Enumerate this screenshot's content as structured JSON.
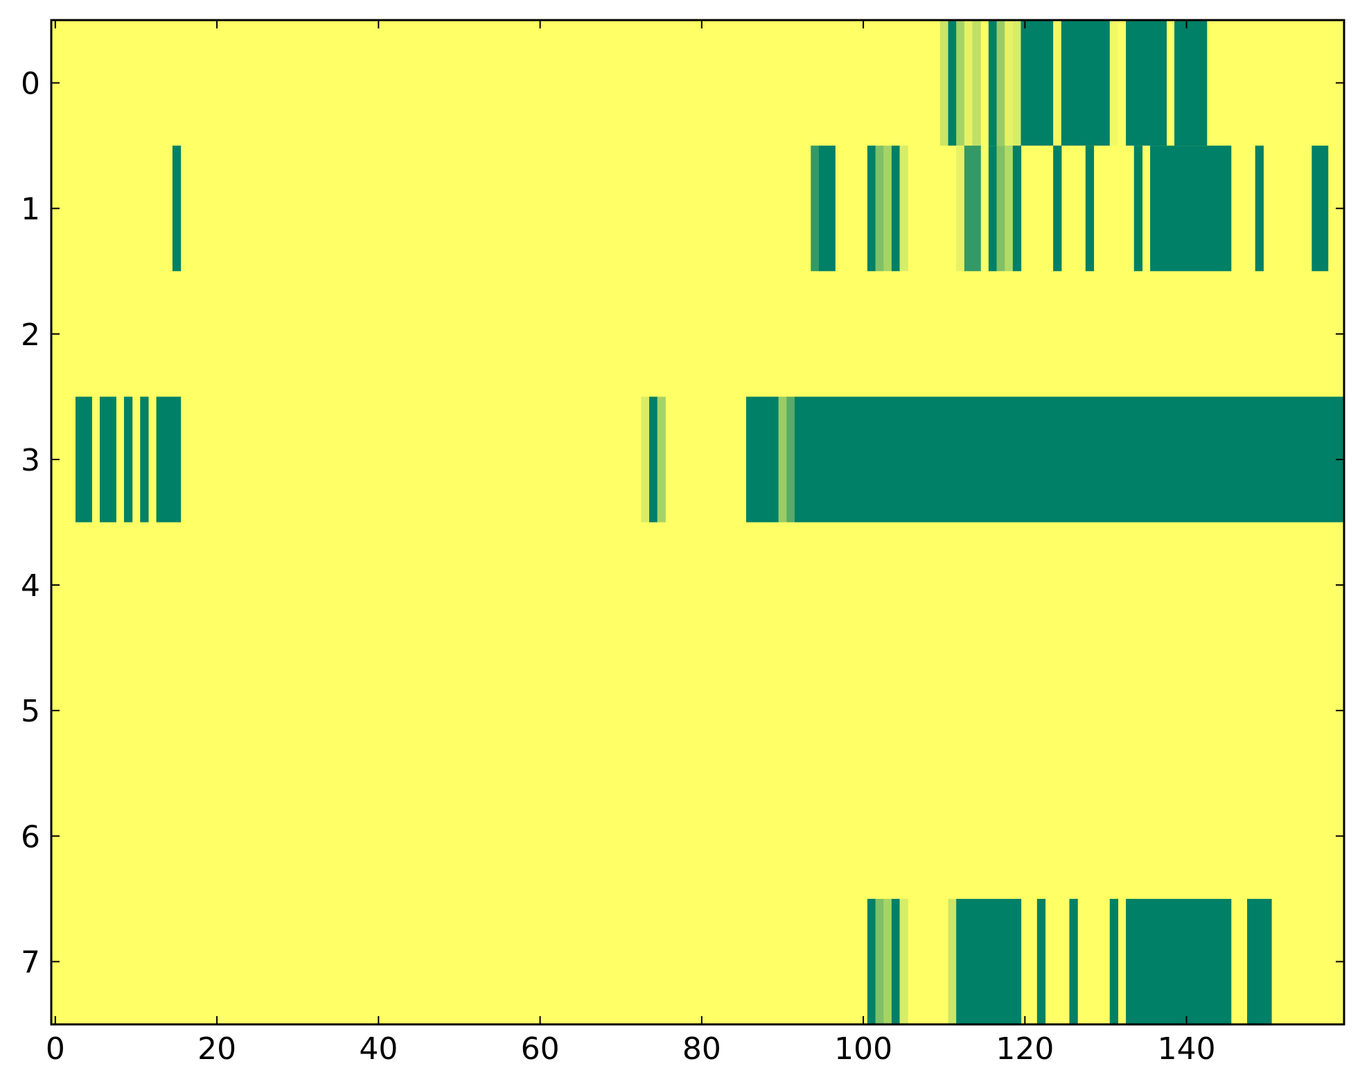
{
  "chart_data": {
    "type": "heatmap",
    "title": "",
    "xlabel": "",
    "ylabel": "",
    "xlim": [
      -0.5,
      159.5
    ],
    "ylim": [
      7.5,
      -0.5
    ],
    "grid": false,
    "x_ticks": [
      0,
      20,
      40,
      60,
      80,
      100,
      120,
      140
    ],
    "x_tick_labels": [
      "0",
      "20",
      "40",
      "60",
      "80",
      "100",
      "120",
      "140"
    ],
    "y_ticks": [
      0,
      1,
      2,
      3,
      4,
      5,
      6,
      7
    ],
    "y_tick_labels": [
      "0",
      "1",
      "2",
      "3",
      "4",
      "5",
      "6",
      "7"
    ],
    "colormap": "summer_r",
    "colors": {
      "low": "#ffff66",
      "high": "#008066"
    },
    "n_cols": 160,
    "background_value": 0,
    "rows": [
      {
        "row": 0,
        "cells": [
          [
            110,
            0.2
          ],
          [
            111,
            1
          ],
          [
            112,
            0.35
          ],
          [
            113,
            0.1
          ],
          [
            114,
            0.25
          ],
          [
            116,
            1
          ],
          [
            117,
            0.4
          ],
          [
            118,
            0.1
          ],
          [
            119,
            0.15
          ],
          [
            120,
            1
          ],
          [
            121,
            1
          ],
          [
            122,
            1
          ],
          [
            123,
            1
          ],
          [
            124,
            0.05
          ],
          [
            125,
            1
          ],
          [
            126,
            1
          ],
          [
            127,
            1
          ],
          [
            128,
            1
          ],
          [
            129,
            1
          ],
          [
            130,
            1
          ],
          [
            131,
            0.05
          ],
          [
            133,
            1
          ],
          [
            134,
            1
          ],
          [
            135,
            1
          ],
          [
            136,
            1
          ],
          [
            137,
            1
          ],
          [
            139,
            1
          ],
          [
            140,
            1
          ],
          [
            141,
            1
          ],
          [
            142,
            1
          ]
        ]
      },
      {
        "row": 1,
        "cells": [
          [
            15,
            1
          ],
          [
            94,
            0.8
          ],
          [
            95,
            1
          ],
          [
            96,
            1
          ],
          [
            101,
            1
          ],
          [
            102,
            0.5
          ],
          [
            103,
            0.35
          ],
          [
            104,
            1
          ],
          [
            105,
            0.15
          ],
          [
            112,
            0.1
          ],
          [
            113,
            0.8
          ],
          [
            114,
            0.8
          ],
          [
            116,
            1
          ],
          [
            117,
            0.5
          ],
          [
            118,
            0.3
          ],
          [
            119,
            1
          ],
          [
            124,
            1
          ],
          [
            128,
            1
          ],
          [
            134,
            1
          ],
          [
            136,
            1
          ],
          [
            137,
            1
          ],
          [
            138,
            1
          ],
          [
            139,
            1
          ],
          [
            140,
            1
          ],
          [
            141,
            1
          ],
          [
            142,
            1
          ],
          [
            143,
            1
          ],
          [
            144,
            1
          ],
          [
            145,
            1
          ],
          [
            149,
            1
          ],
          [
            156,
            1
          ],
          [
            157,
            1
          ]
        ]
      },
      {
        "row": 2,
        "cells": []
      },
      {
        "row": 3,
        "cells": [
          [
            3,
            1
          ],
          [
            4,
            1
          ],
          [
            6,
            1
          ],
          [
            7,
            1
          ],
          [
            9,
            1
          ],
          [
            11,
            1
          ],
          [
            13,
            1
          ],
          [
            14,
            1
          ],
          [
            15,
            1
          ],
          [
            73,
            0.15
          ],
          [
            74,
            1
          ],
          [
            75,
            0.35
          ],
          [
            86,
            1
          ],
          [
            87,
            1
          ],
          [
            88,
            1
          ],
          [
            89,
            1
          ],
          [
            90,
            0.4
          ],
          [
            91,
            0.65
          ],
          "92-159:1"
        ]
      },
      {
        "row": 4,
        "cells": []
      },
      {
        "row": 5,
        "cells": []
      },
      {
        "row": 6,
        "cells": []
      },
      {
        "row": 7,
        "cells": [
          [
            101,
            1
          ],
          [
            102,
            0.5
          ],
          [
            103,
            0.35
          ],
          [
            104,
            1
          ],
          [
            105,
            0.15
          ],
          [
            111,
            0.2
          ],
          [
            112,
            1
          ],
          [
            113,
            1
          ],
          [
            114,
            1
          ],
          [
            115,
            1
          ],
          [
            116,
            1
          ],
          [
            117,
            1
          ],
          [
            118,
            1
          ],
          [
            119,
            1
          ],
          [
            122,
            1
          ],
          [
            126,
            1
          ],
          [
            131,
            1
          ],
          [
            133,
            1
          ],
          [
            134,
            1
          ],
          [
            135,
            1
          ],
          [
            136,
            1
          ],
          [
            137,
            1
          ],
          [
            138,
            1
          ],
          [
            139,
            1
          ],
          [
            140,
            1
          ],
          [
            141,
            1
          ],
          [
            142,
            1
          ],
          [
            143,
            1
          ],
          [
            144,
            1
          ],
          [
            145,
            1
          ],
          [
            148,
            1
          ],
          [
            149,
            1
          ],
          [
            150,
            1
          ]
        ]
      }
    ]
  }
}
